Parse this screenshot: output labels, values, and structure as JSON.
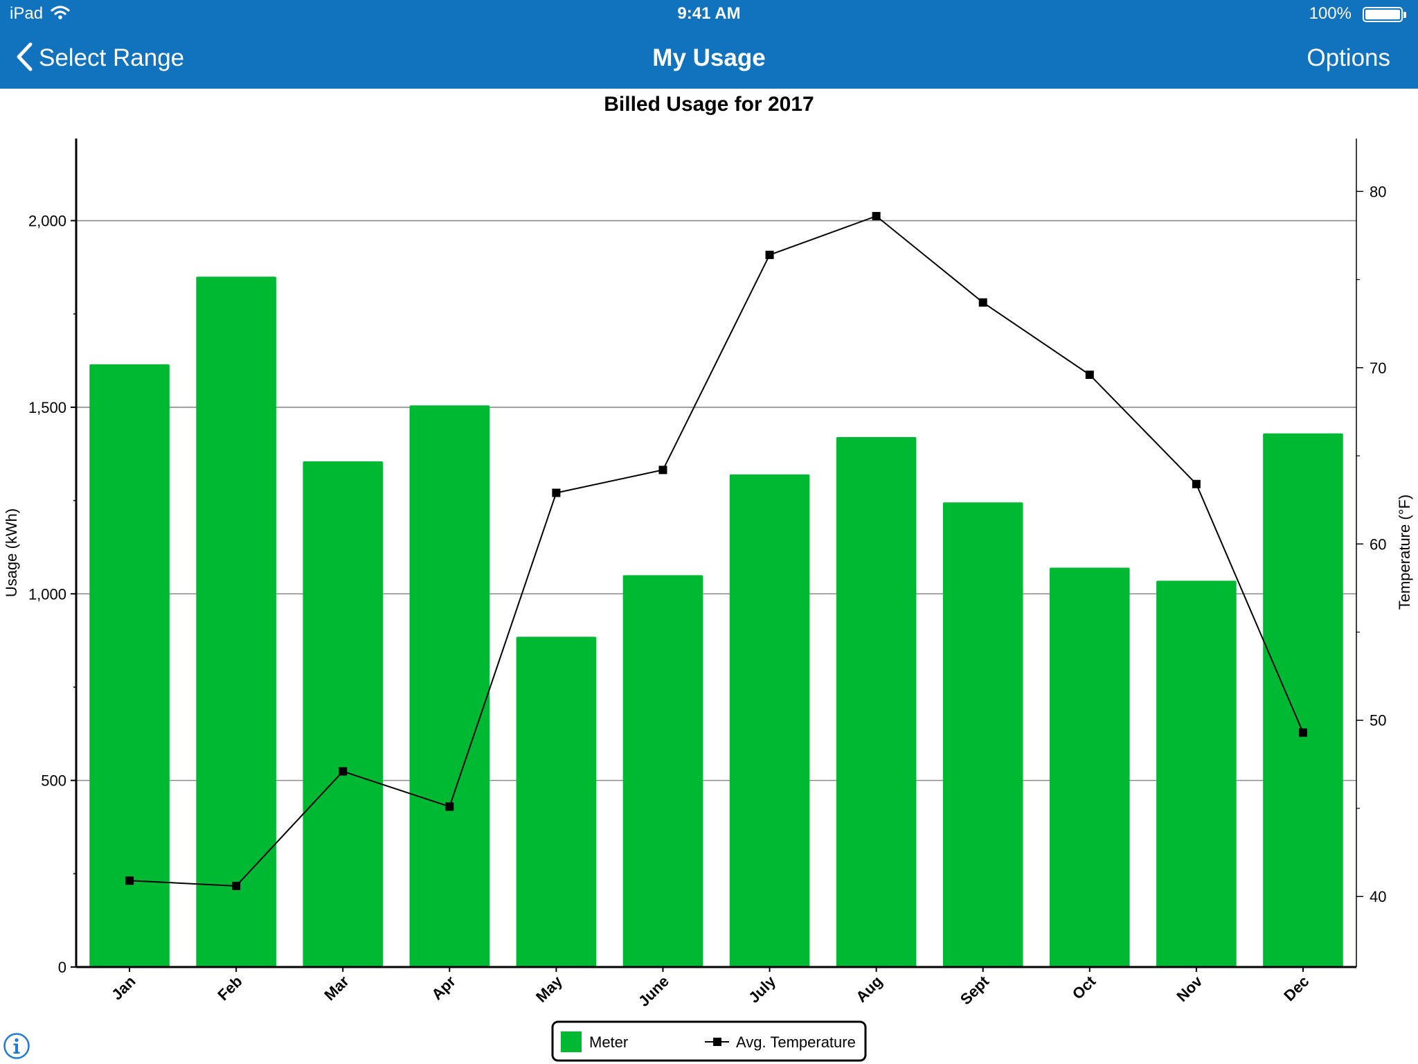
{
  "status_bar": {
    "carrier": "iPad",
    "time": "9:41 AM",
    "battery": "100%"
  },
  "nav": {
    "back_label": "Select Range",
    "title": "My Usage",
    "options_label": "Options"
  },
  "colors": {
    "nav_bg": "#1172bd",
    "bar": "#00b932",
    "line": "#000000"
  },
  "icons": {
    "back": "chevron-left-icon",
    "info": "info-icon",
    "wifi": "wifi-icon",
    "battery": "battery-icon"
  },
  "chart_data": {
    "type": "bar",
    "title": "Billed Usage for 2017",
    "categories": [
      "Jan",
      "Feb",
      "Mar",
      "Apr",
      "May",
      "June",
      "July",
      "Aug",
      "Sept",
      "Oct",
      "Nov",
      "Dec"
    ],
    "ylabel": "Usage (kWh)",
    "y2label": "Temperature (°F)",
    "ylim": [
      0,
      2220
    ],
    "y_ticks": [
      0,
      500,
      1000,
      1500,
      2000
    ],
    "y_tick_labels": [
      "0",
      "500",
      "1,000",
      "1,500",
      "2,000"
    ],
    "y2lim": [
      36,
      83
    ],
    "y2_ticks": [
      40,
      50,
      60,
      70,
      80
    ],
    "y2_tick_labels": [
      "40",
      "50",
      "60",
      "70",
      "80"
    ],
    "grid": true,
    "legend_position": "bottom-center",
    "series": [
      {
        "name": "Meter",
        "type": "bar",
        "axis": "left",
        "values": [
          1615,
          1850,
          1355,
          1505,
          885,
          1050,
          1320,
          1420,
          1245,
          1070,
          1035,
          1430
        ]
      },
      {
        "name": "Avg. Temperature",
        "type": "line",
        "axis": "right",
        "marker": "square",
        "values": [
          40.9,
          40.6,
          47.1,
          45.1,
          62.9,
          64.2,
          76.4,
          78.6,
          73.7,
          69.6,
          63.4,
          49.3
        ]
      }
    ]
  }
}
